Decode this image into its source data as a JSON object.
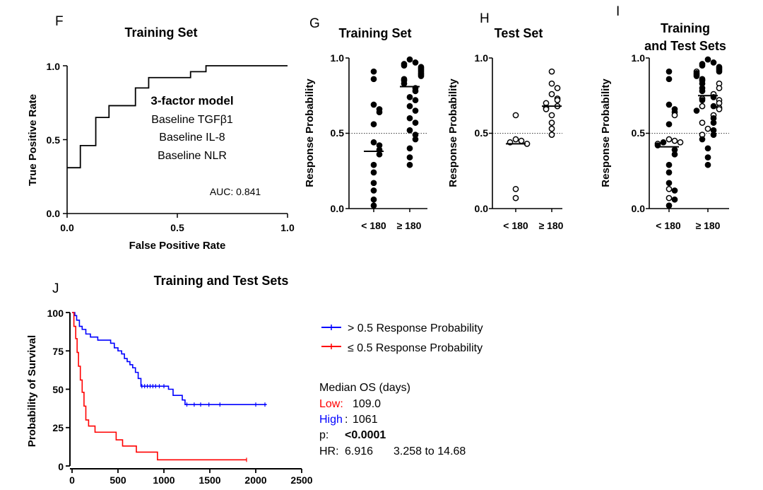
{
  "panel_letters": {
    "F": "F",
    "G": "G",
    "H": "H",
    "I": "I",
    "J": "J"
  },
  "chart_data": [
    {
      "id": "F",
      "type": "line",
      "subtype": "roc-step",
      "title": "Training Set",
      "xlabel": "False Positive Rate",
      "ylabel": "True Positive Rate",
      "xlim": [
        0,
        1
      ],
      "ylim": [
        0,
        1
      ],
      "xticks": [
        "0.0",
        "0.5",
        "1.0"
      ],
      "yticks": [
        "0.0",
        "0.5",
        "1.0"
      ],
      "points": [
        [
          0,
          0.31
        ],
        [
          0.06,
          0.31
        ],
        [
          0.06,
          0.46
        ],
        [
          0.13,
          0.46
        ],
        [
          0.13,
          0.65
        ],
        [
          0.19,
          0.65
        ],
        [
          0.19,
          0.73
        ],
        [
          0.31,
          0.73
        ],
        [
          0.31,
          0.85
        ],
        [
          0.37,
          0.85
        ],
        [
          0.37,
          0.92
        ],
        [
          0.56,
          0.92
        ],
        [
          0.56,
          0.96
        ],
        [
          0.63,
          0.96
        ],
        [
          0.63,
          1.0
        ],
        [
          1.0,
          1.0
        ]
      ],
      "annotation_title": "3-factor model",
      "annotation_lines": [
        "Baseline TGFβ1",
        "Baseline IL-8",
        "Baseline NLR"
      ],
      "auc_label": "AUC: 0.841"
    },
    {
      "id": "G",
      "type": "scatter",
      "subtype": "dot-plot",
      "title": "Training Set",
      "ylabel": "Response Probability",
      "ylim": [
        0,
        1
      ],
      "yticks": [
        "0.0",
        "0.5",
        "1.0"
      ],
      "categories": [
        "< 180",
        "≥ 180"
      ],
      "threshold": 0.5,
      "groups": [
        {
          "median": 0.38,
          "filled": [
            0.91,
            0.86,
            0.69,
            0.66,
            0.64,
            0.56,
            0.44,
            0.42,
            0.39,
            0.36,
            0.29,
            0.24,
            0.17,
            0.12,
            0.06,
            0.02
          ],
          "open": []
        },
        {
          "median": 0.81,
          "filled": [
            0.99,
            0.97,
            0.96,
            0.95,
            0.94,
            0.93,
            0.92,
            0.91,
            0.9,
            0.89,
            0.88,
            0.86,
            0.85,
            0.83,
            0.8,
            0.78,
            0.74,
            0.72,
            0.68,
            0.65,
            0.6,
            0.57,
            0.52,
            0.49,
            0.46,
            0.4,
            0.34,
            0.29
          ],
          "open": []
        }
      ]
    },
    {
      "id": "H",
      "type": "scatter",
      "subtype": "dot-plot",
      "title": "Test Set",
      "ylabel": "Response Probability",
      "ylim": [
        0,
        1
      ],
      "yticks": [
        "0.0",
        "0.5",
        "1.0"
      ],
      "categories": [
        "< 180",
        "≥ 180"
      ],
      "threshold": 0.5,
      "groups": [
        {
          "median": 0.43,
          "filled": [],
          "open": [
            0.62,
            0.46,
            0.45,
            0.44,
            0.43,
            0.13,
            0.07
          ]
        },
        {
          "median": 0.68,
          "filled": [],
          "open": [
            0.91,
            0.83,
            0.8,
            0.76,
            0.73,
            0.72,
            0.7,
            0.68,
            0.67,
            0.66,
            0.62,
            0.57,
            0.53,
            0.49
          ]
        }
      ]
    },
    {
      "id": "I",
      "type": "scatter",
      "subtype": "dot-plot",
      "title": "Training and Test Sets",
      "title_lines": [
        "Training",
        "and Test Sets"
      ],
      "ylabel": "Response Probability",
      "ylim": [
        0,
        1
      ],
      "yticks": [
        "0.0",
        "0.5",
        "1.0"
      ],
      "categories": [
        "< 180",
        "≥ 180"
      ],
      "threshold": 0.5,
      "groups": [
        {
          "median": 0.41,
          "filled": [
            0.91,
            0.86,
            0.69,
            0.66,
            0.64,
            0.56,
            0.44,
            0.42,
            0.39,
            0.36,
            0.29,
            0.24,
            0.17,
            0.12,
            0.06,
            0.02
          ],
          "open": [
            0.62,
            0.46,
            0.45,
            0.44,
            0.43,
            0.13,
            0.07
          ]
        },
        {
          "median": 0.75,
          "filled": [
            0.99,
            0.97,
            0.96,
            0.95,
            0.94,
            0.93,
            0.92,
            0.91,
            0.9,
            0.89,
            0.88,
            0.86,
            0.85,
            0.83,
            0.8,
            0.78,
            0.74,
            0.72,
            0.68,
            0.65,
            0.6,
            0.57,
            0.52,
            0.49,
            0.46,
            0.4,
            0.34,
            0.29
          ],
          "open": [
            0.91,
            0.83,
            0.8,
            0.76,
            0.73,
            0.72,
            0.7,
            0.68,
            0.67,
            0.66,
            0.62,
            0.57,
            0.53,
            0.49
          ]
        }
      ]
    },
    {
      "id": "J",
      "type": "line",
      "subtype": "kaplan-meier",
      "title": "Training and Test Sets",
      "ylabel": "Probability of Survival",
      "xlim": [
        0,
        2500
      ],
      "ylim": [
        0,
        100
      ],
      "xticks": [
        "0",
        "500",
        "1000",
        "1500",
        "2000",
        "2500"
      ],
      "yticks": [
        "0",
        "25",
        "50",
        "75",
        "100"
      ],
      "series": [
        {
          "name": "> 0.5 Response Probability",
          "color": "#0000ff",
          "points": [
            [
              0,
              100
            ],
            [
              30,
              100
            ],
            [
              30,
              98
            ],
            [
              50,
              98
            ],
            [
              50,
              95
            ],
            [
              80,
              95
            ],
            [
              80,
              91
            ],
            [
              110,
              91
            ],
            [
              110,
              89
            ],
            [
              150,
              89
            ],
            [
              150,
              86
            ],
            [
              200,
              86
            ],
            [
              200,
              84
            ],
            [
              280,
              84
            ],
            [
              280,
              82
            ],
            [
              420,
              82
            ],
            [
              420,
              80
            ],
            [
              460,
              80
            ],
            [
              460,
              77
            ],
            [
              500,
              77
            ],
            [
              500,
              75
            ],
            [
              540,
              75
            ],
            [
              540,
              73
            ],
            [
              570,
              73
            ],
            [
              570,
              70
            ],
            [
              600,
              70
            ],
            [
              600,
              68
            ],
            [
              630,
              68
            ],
            [
              630,
              66
            ],
            [
              660,
              66
            ],
            [
              660,
              64
            ],
            [
              690,
              64
            ],
            [
              690,
              61
            ],
            [
              720,
              61
            ],
            [
              720,
              57
            ],
            [
              750,
              57
            ],
            [
              750,
              52
            ],
            [
              1050,
              52
            ],
            [
              1050,
              50
            ],
            [
              1100,
              50
            ],
            [
              1100,
              46
            ],
            [
              1200,
              46
            ],
            [
              1200,
              43
            ],
            [
              1230,
              43
            ],
            [
              1230,
              40
            ],
            [
              2120,
              40
            ]
          ],
          "censors": [
            [
              760,
              52
            ],
            [
              790,
              52
            ],
            [
              820,
              52
            ],
            [
              850,
              52
            ],
            [
              880,
              52
            ],
            [
              910,
              52
            ],
            [
              950,
              52
            ],
            [
              1000,
              52
            ],
            [
              1250,
              40
            ],
            [
              1330,
              40
            ],
            [
              1400,
              40
            ],
            [
              1490,
              40
            ],
            [
              1610,
              40
            ],
            [
              2000,
              40
            ],
            [
              2100,
              40
            ]
          ]
        },
        {
          "name": "≤ 0.5 Response Probability",
          "color": "#ff0000",
          "points": [
            [
              0,
              100
            ],
            [
              20,
              100
            ],
            [
              20,
              91
            ],
            [
              40,
              91
            ],
            [
              40,
              83
            ],
            [
              55,
              83
            ],
            [
              55,
              74
            ],
            [
              70,
              74
            ],
            [
              70,
              65
            ],
            [
              90,
              65
            ],
            [
              90,
              56
            ],
            [
              110,
              56
            ],
            [
              110,
              48
            ],
            [
              130,
              48
            ],
            [
              130,
              39
            ],
            [
              150,
              39
            ],
            [
              150,
              30
            ],
            [
              180,
              30
            ],
            [
              180,
              26
            ],
            [
              250,
              26
            ],
            [
              250,
              22
            ],
            [
              480,
              22
            ],
            [
              480,
              17
            ],
            [
              550,
              17
            ],
            [
              550,
              13
            ],
            [
              700,
              13
            ],
            [
              700,
              9
            ],
            [
              930,
              9
            ],
            [
              930,
              4
            ],
            [
              1900,
              4
            ]
          ],
          "censors": [
            [
              1900,
              4
            ]
          ]
        }
      ]
    }
  ],
  "stats": {
    "header": "Median OS  (days)",
    "low_label": "Low:",
    "low_value": "109.0",
    "high_label": "High",
    "high_suffix": ":",
    "high_value": "1061",
    "p_label": "p:",
    "p_value": "<0.0001",
    "hr_label": "HR:",
    "hr_value": "6.916",
    "hr_ci": "3.258 to 14.68"
  },
  "colors": {
    "low": "#ff0000",
    "high": "#0000ff",
    "axis": "#000000"
  }
}
